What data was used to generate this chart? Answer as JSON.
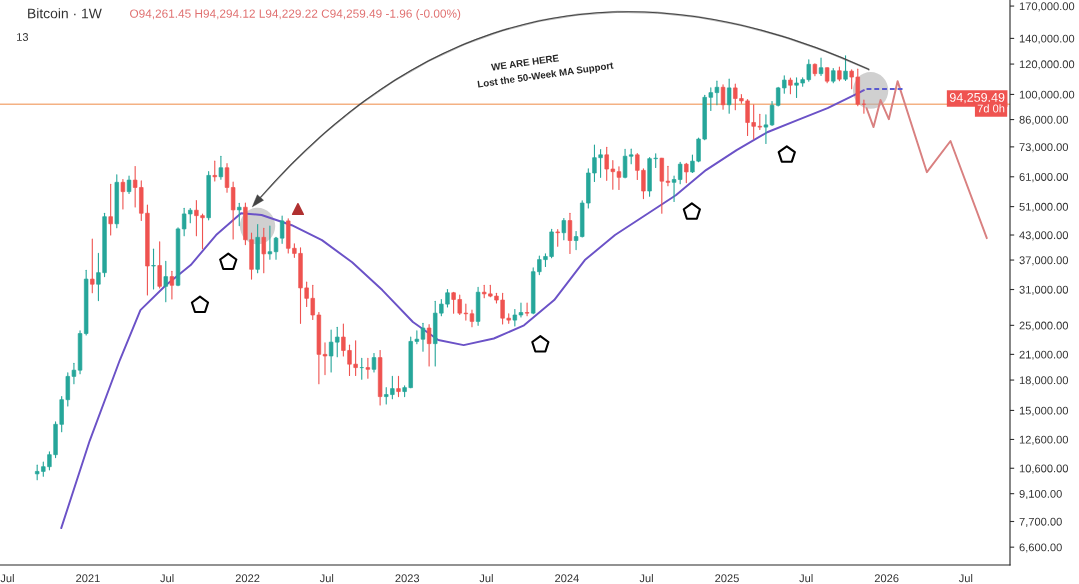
{
  "chart_data": {
    "type": "candlestick",
    "title": "Bitcoin · 1W",
    "subtitle": "O94,261.45 H94,294.12 L94,229.22 C94,259.49 -1.96 (-0.00%)",
    "annotations": [
      "13",
      "WE ARE HERE",
      "Lost the 50-Week MA Support",
      "7d 0h"
    ],
    "x": [
      "2020-09-07",
      "2020-09-21",
      "2020-10-05",
      "2020-10-19",
      "2020-11-02",
      "2020-11-16",
      "2020-11-30",
      "2020-12-14",
      "2020-12-28",
      "2021-01-11",
      "2021-01-25",
      "2021-02-08",
      "2021-02-22",
      "2021-03-08",
      "2021-03-22",
      "2021-04-05",
      "2021-04-19",
      "2021-05-03",
      "2021-05-17",
      "2021-05-31",
      "2021-06-14",
      "2021-06-28",
      "2021-07-12",
      "2021-07-26",
      "2021-08-09",
      "2021-08-23",
      "2021-09-06",
      "2021-09-20",
      "2021-10-04",
      "2021-10-18",
      "2021-11-01",
      "2021-11-15",
      "2021-11-29",
      "2021-12-13",
      "2021-12-27",
      "2022-01-10",
      "2022-01-24",
      "2022-02-07",
      "2022-02-21",
      "2022-03-07",
      "2022-03-21",
      "2022-04-04",
      "2022-04-18",
      "2022-05-02",
      "2022-05-16",
      "2022-05-30",
      "2022-06-13",
      "2022-06-27",
      "2022-07-11",
      "2022-07-25",
      "2022-08-08",
      "2022-08-22",
      "2022-09-05",
      "2022-09-19",
      "2022-10-03",
      "2022-10-17",
      "2022-10-31",
      "2022-11-14",
      "2022-11-28",
      "2022-12-12",
      "2022-12-26",
      "2023-01-09",
      "2023-01-23",
      "2023-02-06",
      "2023-02-20",
      "2023-03-06",
      "2023-03-20",
      "2023-04-03",
      "2023-04-17",
      "2023-05-01",
      "2023-05-15",
      "2023-05-29",
      "2023-06-12",
      "2023-06-26",
      "2023-07-10",
      "2023-07-24",
      "2023-08-07",
      "2023-08-21",
      "2023-09-04",
      "2023-09-18",
      "2023-10-02",
      "2023-10-16",
      "2023-10-30",
      "2023-11-13",
      "2023-11-27",
      "2023-12-11",
      "2023-12-25",
      "2024-01-08",
      "2024-01-22",
      "2024-02-05",
      "2024-02-19",
      "2024-03-04",
      "2024-03-18",
      "2024-04-01",
      "2024-04-15",
      "2024-04-29",
      "2024-05-13",
      "2024-05-27",
      "2024-06-10",
      "2024-06-24",
      "2024-07-08",
      "2024-07-22",
      "2024-08-05",
      "2024-08-19",
      "2024-09-02",
      "2024-09-16",
      "2024-09-30",
      "2024-10-14",
      "2024-10-28",
      "2024-11-11",
      "2024-11-25",
      "2024-12-09",
      "2024-12-23",
      "2025-01-06",
      "2025-01-20",
      "2025-02-03",
      "2025-02-17",
      "2025-03-03",
      "2025-03-17",
      "2025-03-31",
      "2025-04-14",
      "2025-04-28",
      "2025-05-12",
      "2025-05-26",
      "2025-06-09",
      "2025-06-23",
      "2025-07-07",
      "2025-07-21",
      "2025-08-04",
      "2025-08-18",
      "2025-09-01",
      "2025-09-15",
      "2025-09-29",
      "2025-10-13",
      "2025-10-27",
      "2025-11-10"
    ],
    "ohlc": [
      [
        10250,
        10800,
        9900,
        10400
      ],
      [
        10400,
        11000,
        10100,
        10700
      ],
      [
        10700,
        11700,
        10500,
        11500
      ],
      [
        11500,
        14000,
        11300,
        13800
      ],
      [
        13800,
        16300,
        13200,
        16000
      ],
      [
        16000,
        18800,
        15400,
        18400
      ],
      [
        18400,
        19900,
        17600,
        19100
      ],
      [
        19100,
        24200,
        18700,
        23800
      ],
      [
        23800,
        34800,
        23600,
        33000
      ],
      [
        33000,
        42000,
        30400,
        32000
      ],
      [
        32000,
        38500,
        29000,
        34300
      ],
      [
        34300,
        49000,
        33500,
        48000
      ],
      [
        48000,
        58300,
        43000,
        46000
      ],
      [
        46000,
        61700,
        44900,
        59000
      ],
      [
        59000,
        60000,
        50300,
        55800
      ],
      [
        55800,
        61300,
        55200,
        59800
      ],
      [
        59800,
        64900,
        50900,
        57200
      ],
      [
        57200,
        59500,
        46900,
        49000
      ],
      [
        49000,
        51500,
        30000,
        35700
      ],
      [
        35700,
        39500,
        31100,
        35800
      ],
      [
        35800,
        41300,
        31300,
        31600
      ],
      [
        31600,
        36700,
        28800,
        33500
      ],
      [
        33500,
        34600,
        29300,
        31800
      ],
      [
        31800,
        44900,
        31700,
        44600
      ],
      [
        44600,
        50500,
        42800,
        48800
      ],
      [
        48800,
        50400,
        46300,
        49900
      ],
      [
        49900,
        52900,
        42800,
        48300
      ],
      [
        48300,
        48800,
        39600,
        47700
      ],
      [
        47700,
        62900,
        47100,
        61500
      ],
      [
        61500,
        67000,
        59500,
        61000
      ],
      [
        61000,
        69000,
        60100,
        64400
      ],
      [
        64400,
        66000,
        55600,
        57200
      ],
      [
        57200,
        59100,
        42000,
        50000
      ],
      [
        50000,
        52000,
        45500,
        50800
      ],
      [
        50800,
        52100,
        40600,
        41800
      ],
      [
        41800,
        43500,
        33000,
        35000
      ],
      [
        35000,
        45800,
        34300,
        42400
      ],
      [
        42400,
        44800,
        34300,
        38400
      ],
      [
        38400,
        45400,
        37200,
        38900
      ],
      [
        38900,
        42400,
        37200,
        42200
      ],
      [
        42200,
        48200,
        40900,
        46800
      ],
      [
        46800,
        47400,
        38600,
        39700
      ],
      [
        39700,
        40800,
        37600,
        38500
      ],
      [
        38500,
        39800,
        25300,
        31300
      ],
      [
        31300,
        32400,
        28000,
        29400
      ],
      [
        29400,
        31800,
        25900,
        26600
      ],
      [
        26600,
        27000,
        17600,
        21000
      ],
      [
        21000,
        22500,
        18600,
        20800
      ],
      [
        20800,
        24300,
        18900,
        22600
      ],
      [
        22600,
        24700,
        20700,
        23300
      ],
      [
        23300,
        25200,
        20800,
        21500
      ],
      [
        21500,
        22200,
        18500,
        19800
      ],
      [
        19800,
        22800,
        18500,
        19400
      ],
      [
        19400,
        20500,
        18100,
        19400
      ],
      [
        19400,
        20500,
        18200,
        19200
      ],
      [
        19200,
        21100,
        18900,
        20600
      ],
      [
        20600,
        21500,
        15500,
        16300
      ],
      [
        16300,
        17200,
        15600,
        16500
      ],
      [
        16500,
        18400,
        16100,
        17100
      ],
      [
        17100,
        18400,
        16300,
        16800
      ],
      [
        16800,
        17400,
        16300,
        17200
      ],
      [
        17200,
        23300,
        17200,
        22700
      ],
      [
        22700,
        24200,
        22400,
        23000
      ],
      [
        23000,
        25300,
        21400,
        24600
      ],
      [
        24600,
        25100,
        19600,
        22400
      ],
      [
        22400,
        28900,
        19600,
        26900
      ],
      [
        26900,
        29200,
        26500,
        28400
      ],
      [
        28400,
        31000,
        27900,
        30400
      ],
      [
        30400,
        30500,
        26900,
        29200
      ],
      [
        29200,
        30000,
        26700,
        26900
      ],
      [
        26900,
        28400,
        25800,
        26800
      ],
      [
        26800,
        27400,
        24800,
        25600
      ],
      [
        25600,
        31400,
        25000,
        30500
      ],
      [
        30500,
        31800,
        29500,
        30200
      ],
      [
        30200,
        31800,
        29700,
        29800
      ],
      [
        29800,
        30300,
        28600,
        29100
      ],
      [
        29100,
        30300,
        25200,
        26100
      ],
      [
        26100,
        26800,
        25300,
        25800
      ],
      [
        25800,
        27500,
        24900,
        26600
      ],
      [
        26600,
        28600,
        26300,
        27000
      ],
      [
        27000,
        28600,
        26500,
        26900
      ],
      [
        26900,
        35300,
        26800,
        34500
      ],
      [
        34500,
        37900,
        33900,
        37100
      ],
      [
        37100,
        38400,
        35600,
        37800
      ],
      [
        37800,
        44500,
        37500,
        43800
      ],
      [
        43800,
        44400,
        40200,
        43600
      ],
      [
        43600,
        47500,
        41800,
        46900
      ],
      [
        46900,
        49000,
        38500,
        41600
      ],
      [
        41600,
        43900,
        39400,
        42600
      ],
      [
        42600,
        52800,
        42500,
        52100
      ],
      [
        52100,
        64000,
        50600,
        62400
      ],
      [
        62400,
        73800,
        59300,
        68400
      ],
      [
        68400,
        71800,
        60800,
        69600
      ],
      [
        69600,
        72800,
        59700,
        63900
      ],
      [
        63900,
        67200,
        56600,
        62900
      ],
      [
        62900,
        64800,
        56500,
        60800
      ],
      [
        60800,
        71900,
        60600,
        69000
      ],
      [
        69000,
        72000,
        66000,
        69600
      ],
      [
        69600,
        70100,
        60000,
        63400
      ],
      [
        63400,
        64000,
        53500,
        56000
      ],
      [
        56000,
        68500,
        54300,
        68000
      ],
      [
        68000,
        70000,
        64500,
        68200
      ],
      [
        68200,
        68200,
        49000,
        59400
      ],
      [
        59400,
        65000,
        57800,
        59000
      ],
      [
        59000,
        61300,
        52600,
        60000
      ],
      [
        60000,
        66500,
        58500,
        65800
      ],
      [
        65800,
        66100,
        58900,
        62800
      ],
      [
        62800,
        69500,
        62600,
        67000
      ],
      [
        67000,
        77000,
        66800,
        76500
      ],
      [
        76500,
        99500,
        76200,
        98300
      ],
      [
        98300,
        104000,
        90800,
        101100
      ],
      [
        101100,
        108300,
        94000,
        104400
      ],
      [
        104400,
        106000,
        91500,
        94000
      ],
      [
        94000,
        109600,
        89300,
        104000
      ],
      [
        104000,
        106400,
        91200,
        97600
      ],
      [
        97600,
        100000,
        94900,
        96200
      ],
      [
        96200,
        97000,
        78200,
        84500
      ],
      [
        84500,
        94000,
        76600,
        82600
      ],
      [
        82600,
        88800,
        81000,
        82200
      ],
      [
        82200,
        88500,
        74500,
        83300
      ],
      [
        83300,
        95800,
        83000,
        93700
      ],
      [
        93700,
        104300,
        93300,
        104000
      ],
      [
        104000,
        111900,
        100700,
        109000
      ],
      [
        109000,
        110300,
        100400,
        105700
      ],
      [
        105700,
        110500,
        98200,
        107100
      ],
      [
        107100,
        110500,
        105100,
        109300
      ],
      [
        109300,
        123200,
        108300,
        119800
      ],
      [
        119800,
        120200,
        111900,
        113300
      ],
      [
        113300,
        124500,
        112000,
        117400
      ],
      [
        117400,
        117400,
        107300,
        108300
      ],
      [
        108300,
        116800,
        107300,
        115300
      ],
      [
        115300,
        117900,
        108600,
        109600
      ],
      [
        109600,
        126200,
        108700,
        115000
      ],
      [
        115000,
        116000,
        103500,
        111000
      ],
      [
        111000,
        116400,
        93500,
        94300
      ],
      [
        94300,
        96700,
        89300,
        94260
      ]
    ],
    "series": [
      {
        "type": "line",
        "color": "#6b52c7",
        "line_style": "solid",
        "x": [
          "2020-11-01",
          "2021-01-05",
          "2021-03-15",
          "2021-05-01",
          "2021-06-28",
          "2021-08-24",
          "2021-10-21",
          "2021-12-17",
          "2022-02-02",
          "2022-04-12",
          "2022-06-20",
          "2022-08-28",
          "2022-11-05",
          "2023-01-14",
          "2023-03-13",
          "2023-05-10",
          "2023-07-18",
          "2023-09-25",
          "2023-12-03",
          "2024-02-11",
          "2024-04-20",
          "2024-06-29",
          "2024-09-06",
          "2024-11-14",
          "2025-01-23",
          "2025-04-03",
          "2025-06-11",
          "2025-08-19",
          "2025-10-28",
          "2025-11-10"
        ],
        "values": [
          7400,
          12500,
          20300,
          27400,
          31800,
          35900,
          43000,
          49000,
          48500,
          45600,
          41700,
          36500,
          30900,
          25500,
          22900,
          22200,
          23100,
          25000,
          29100,
          37000,
          43000,
          48500,
          54600,
          63500,
          71600,
          79700,
          85700,
          92100,
          100800,
          102600
        ]
      },
      {
        "type": "line",
        "color": "#d98080",
        "line_style": "solid",
        "x": [
          "2025-11-16",
          "2025-12-02",
          "2025-12-18",
          "2026-01-06",
          "2026-01-26",
          "2026-04-03",
          "2026-05-27",
          "2026-08-18"
        ],
        "values": [
          92100,
          82200,
          96700,
          86200,
          108300,
          62700,
          75600,
          42200
        ]
      },
      {
        "type": "line",
        "color": "#5a5ad0",
        "line_style": "dashed",
        "x": [
          "2025-11-16",
          "2026-02-09"
        ],
        "values": [
          103300,
          103300
        ]
      }
    ],
    "log": "y",
    "xlim": [
      "2020-06-14",
      "2026-10-10"
    ],
    "xticks": [
      {
        "value": "2020-07-01",
        "label": "Jul"
      },
      {
        "value": "2021-01-01",
        "label": "2021"
      },
      {
        "value": "2021-07-01",
        "label": "Jul"
      },
      {
        "value": "2022-01-01",
        "label": "2022"
      },
      {
        "value": "2022-07-01",
        "label": "Jul"
      },
      {
        "value": "2023-01-01",
        "label": "2023"
      },
      {
        "value": "2023-07-01",
        "label": "Jul"
      },
      {
        "value": "2024-01-01",
        "label": "2024"
      },
      {
        "value": "2024-07-01",
        "label": "Jul"
      },
      {
        "value": "2025-01-01",
        "label": "2025"
      },
      {
        "value": "2025-07-01",
        "label": "Jul"
      },
      {
        "value": "2026-01-01",
        "label": "2026"
      },
      {
        "value": "2026-07-01",
        "label": "Jul"
      }
    ],
    "ylim": [
      5930,
      176300
    ],
    "yticks": [
      {
        "value": 6600,
        "label": "6,600.00"
      },
      {
        "value": 7700,
        "label": "7,700.00"
      },
      {
        "value": 9100,
        "label": "9,100.00"
      },
      {
        "value": 10600,
        "label": "10,600.00"
      },
      {
        "value": 12600,
        "label": "12,600.00"
      },
      {
        "value": 15000,
        "label": "15,000.00"
      },
      {
        "value": 18000,
        "label": "18,000.00"
      },
      {
        "value": 21000,
        "label": "21,000.00"
      },
      {
        "value": 25000,
        "label": "25,000.00"
      },
      {
        "value": 31000,
        "label": "31,000.00"
      },
      {
        "value": 37000,
        "label": "37,000.00"
      },
      {
        "value": 43000,
        "label": "43,000.00"
      },
      {
        "value": 51000,
        "label": "51,000.00"
      },
      {
        "value": 61000,
        "label": "61,000.00"
      },
      {
        "value": 73000,
        "label": "73,000.00"
      },
      {
        "value": 86000,
        "label": "86,000.00"
      },
      {
        "value": 100000,
        "label": "100,000.00"
      },
      {
        "value": 120000,
        "label": "120,000.00"
      },
      {
        "value": 140000,
        "label": "140,000.00"
      },
      {
        "value": 170000,
        "label": "170,000.00"
      }
    ],
    "ref_lines": [
      {
        "axis": "y",
        "value": 94259.49,
        "label": "94,259.49",
        "color": "#f4b183"
      }
    ],
    "grid": false,
    "legend": false
  }
}
